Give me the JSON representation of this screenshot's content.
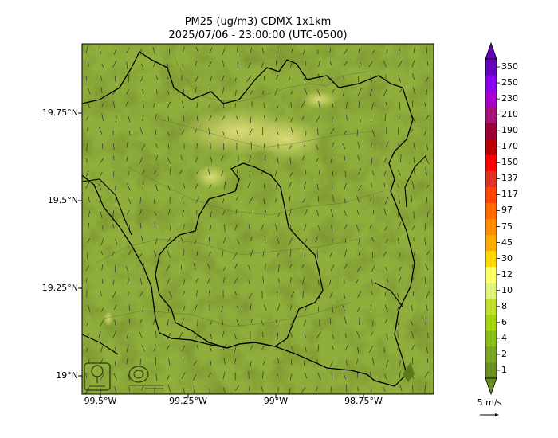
{
  "map": {
    "title_line1": "PM25 (ug/m3) CDMX 1x1km",
    "title_line2": "2025/07/06 - 23:00:00 (UTC-0500)",
    "lat_ticks": [
      "19.75°N",
      "19.5°N",
      "19.25°N",
      "19°N"
    ],
    "lon_ticks": [
      "99.5°W",
      "99.25°W",
      "99°W",
      "98.75°W"
    ],
    "colorbar": {
      "levels": [
        "1",
        "2",
        "4",
        "6",
        "8",
        "10",
        "12",
        "30",
        "45",
        "75",
        "97",
        "117",
        "137",
        "150",
        "170",
        "190",
        "210",
        "230",
        "250",
        "350"
      ],
      "colors": [
        "#6a8f1f",
        "#78a51d",
        "#86bd16",
        "#a4d20d",
        "#bedc2a",
        "#ddf27a",
        "#ffff66",
        "#ffd700",
        "#ffaa00",
        "#ff8c00",
        "#ff6a00",
        "#ff4500",
        "#dd3322",
        "#ff0000",
        "#bb0000",
        "#990033",
        "#aa1177",
        "#aa00cc",
        "#8800ee",
        "#6600bb"
      ]
    },
    "wind_key_label": "5 m/s",
    "wind_key_speed_ms": 5
  }
}
